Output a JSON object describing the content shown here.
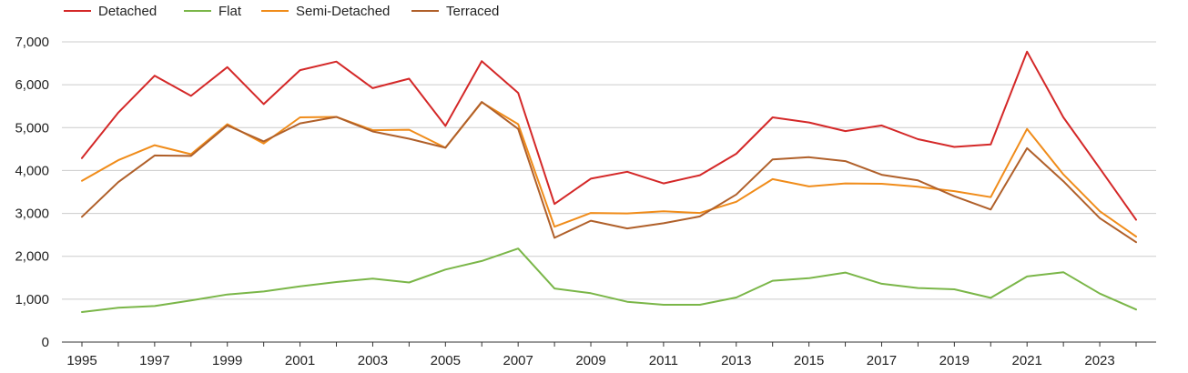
{
  "chart_data": {
    "type": "line",
    "title": "",
    "xlabel": "",
    "ylabel": "",
    "legend_position": "top-left",
    "grid": true,
    "ylim": [
      0,
      7000
    ],
    "xlim": [
      1995,
      2024
    ],
    "y_ticks": [
      {
        "value": 0,
        "label": "0"
      },
      {
        "value": 1000,
        "label": "1,000"
      },
      {
        "value": 2000,
        "label": "2,000"
      },
      {
        "value": 3000,
        "label": "3,000"
      },
      {
        "value": 4000,
        "label": "4,000"
      },
      {
        "value": 5000,
        "label": "5,000"
      },
      {
        "value": 6000,
        "label": "6,000"
      },
      {
        "value": 7000,
        "label": "7,000"
      }
    ],
    "x_ticks": [
      {
        "value": 1995,
        "label": "1995"
      },
      {
        "value": 1997,
        "label": "1997"
      },
      {
        "value": 1999,
        "label": "1999"
      },
      {
        "value": 2001,
        "label": "2001"
      },
      {
        "value": 2003,
        "label": "2003"
      },
      {
        "value": 2005,
        "label": "2005"
      },
      {
        "value": 2007,
        "label": "2007"
      },
      {
        "value": 2009,
        "label": "2009"
      },
      {
        "value": 2011,
        "label": "2011"
      },
      {
        "value": 2013,
        "label": "2013"
      },
      {
        "value": 2015,
        "label": "2015"
      },
      {
        "value": 2017,
        "label": "2017"
      },
      {
        "value": 2019,
        "label": "2019"
      },
      {
        "value": 2021,
        "label": "2021"
      },
      {
        "value": 2023,
        "label": "2023"
      }
    ],
    "x": [
      1995,
      1996,
      1997,
      1998,
      1999,
      2000,
      2001,
      2002,
      2003,
      2004,
      2005,
      2006,
      2007,
      2008,
      2009,
      2010,
      2011,
      2012,
      2013,
      2014,
      2015,
      2016,
      2017,
      2018,
      2019,
      2020,
      2021,
      2022,
      2023,
      2024
    ],
    "series": [
      {
        "name": "Detached",
        "color": "#d42828",
        "values": [
          4290,
          5350,
          6210,
          5740,
          6410,
          5550,
          6340,
          6540,
          5920,
          6140,
          5040,
          6550,
          5810,
          3220,
          3810,
          3970,
          3700,
          3890,
          4390,
          5240,
          5120,
          4920,
          5050,
          4730,
          4550,
          4610,
          6770,
          5240,
          4050,
          2850
        ]
      },
      {
        "name": "Flat",
        "color": "#7ab648",
        "values": [
          700,
          800,
          840,
          970,
          1110,
          1180,
          1300,
          1400,
          1480,
          1390,
          1690,
          1890,
          2180,
          1250,
          1140,
          940,
          870,
          870,
          1040,
          1430,
          1490,
          1620,
          1360,
          1260,
          1230,
          1030,
          1530,
          1630,
          1130,
          760
        ]
      },
      {
        "name": "Semi-Detached",
        "color": "#f08c1a",
        "values": [
          3760,
          4240,
          4590,
          4380,
          5080,
          4630,
          5240,
          5250,
          4940,
          4950,
          4530,
          5590,
          5080,
          2690,
          3010,
          3000,
          3050,
          3010,
          3270,
          3800,
          3630,
          3700,
          3690,
          3620,
          3520,
          3380,
          4970,
          3910,
          3050,
          2460
        ]
      },
      {
        "name": "Terraced",
        "color": "#b0602a",
        "values": [
          2920,
          3730,
          4350,
          4340,
          5050,
          4680,
          5100,
          5250,
          4910,
          4740,
          4530,
          5600,
          4970,
          2430,
          2830,
          2650,
          2770,
          2930,
          3440,
          4260,
          4310,
          4220,
          3900,
          3770,
          3400,
          3090,
          4520,
          3750,
          2890,
          2330
        ]
      }
    ]
  }
}
